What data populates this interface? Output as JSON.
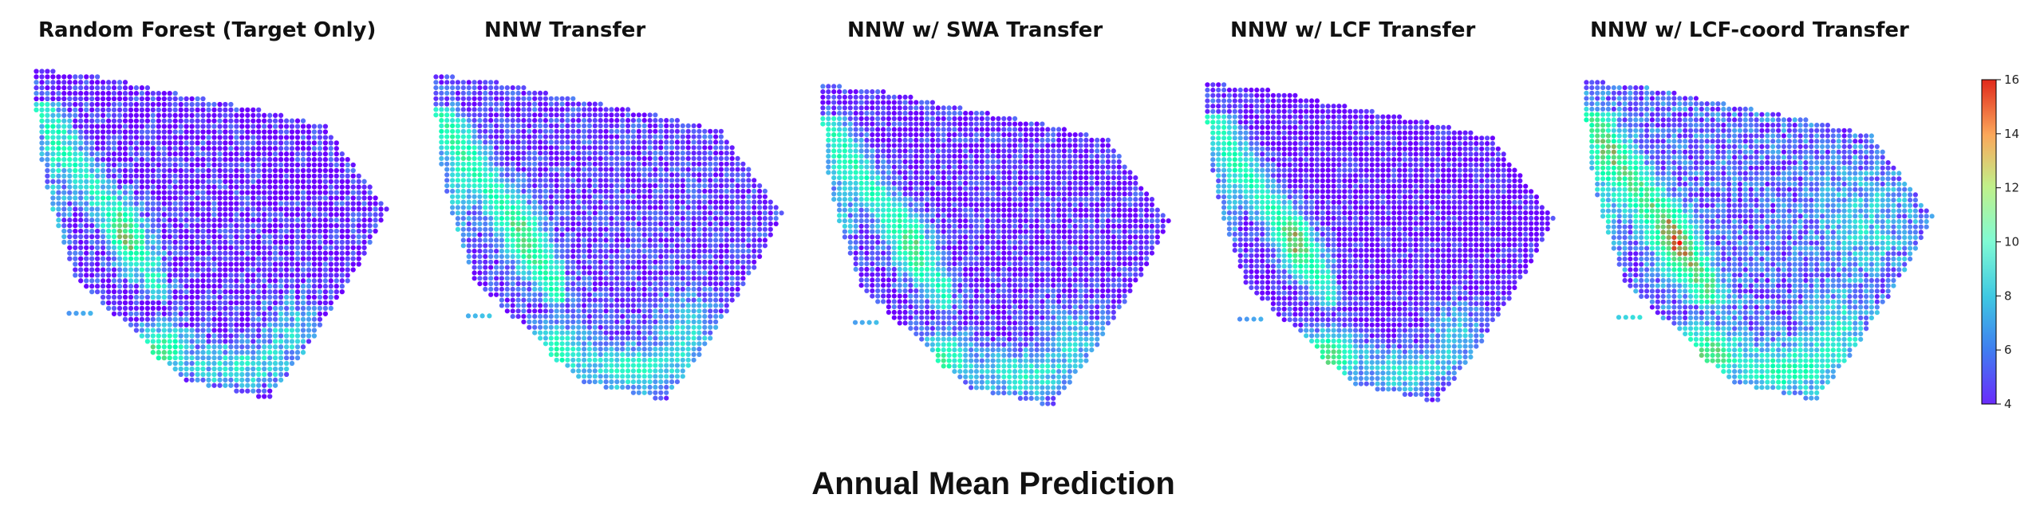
{
  "chart_data": {
    "type": "heatmap",
    "title": "Annual Mean Prediction",
    "panels": [
      {
        "title": "Random Forest (Target Only)",
        "variant": "rf"
      },
      {
        "title": "NNW Transfer",
        "variant": "nnw"
      },
      {
        "title": "NNW w/ SWA Transfer",
        "variant": "swa"
      },
      {
        "title": "NNW w/ LCF Transfer",
        "variant": "lcf"
      },
      {
        "title": "NNW w/ LCF-coord Transfer",
        "variant": "lcfc"
      }
    ],
    "colorbar": {
      "colormap": "rainbow",
      "range": [
        4,
        16
      ],
      "ticks": [
        "4",
        "6",
        "8",
        "10",
        "12",
        "14",
        "16"
      ]
    },
    "colors": {
      "low": "#6a2bfb",
      "mid": "#7fffd4",
      "high": "#dc2a1a"
    }
  }
}
